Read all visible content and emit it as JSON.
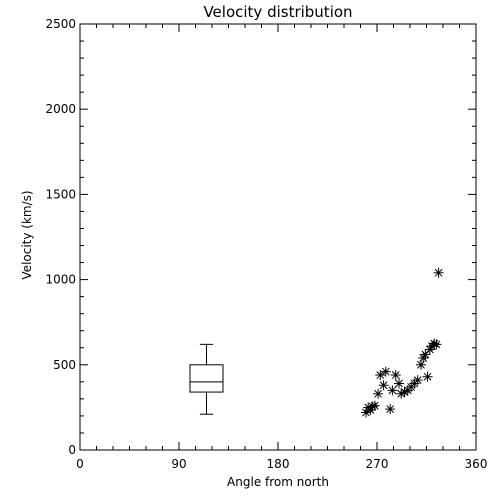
{
  "chart_data": {
    "type": "scatter",
    "title": "Velocity distribution",
    "xlabel": "Angle from north",
    "ylabel": "Velocity (km/s)",
    "xlim": [
      0,
      360
    ],
    "ylim": [
      0,
      2500
    ],
    "x_ticks": [
      0,
      90,
      180,
      270,
      360
    ],
    "y_ticks": [
      0,
      500,
      1000,
      1500,
      2000,
      2500
    ],
    "x_tick_labels": [
      "0",
      "90",
      "180",
      "270",
      "360"
    ],
    "y_tick_labels": [
      "0",
      "500",
      "1000",
      "1500",
      "2000",
      "2500"
    ],
    "grid": false,
    "marker": "asterisk",
    "points": [
      {
        "x": 260,
        "y": 220
      },
      {
        "x": 262,
        "y": 250
      },
      {
        "x": 264,
        "y": 235
      },
      {
        "x": 266,
        "y": 255
      },
      {
        "x": 268,
        "y": 260
      },
      {
        "x": 271,
        "y": 330
      },
      {
        "x": 273,
        "y": 440
      },
      {
        "x": 276,
        "y": 380
      },
      {
        "x": 278,
        "y": 460
      },
      {
        "x": 282,
        "y": 240
      },
      {
        "x": 284,
        "y": 350
      },
      {
        "x": 287,
        "y": 440
      },
      {
        "x": 290,
        "y": 390
      },
      {
        "x": 292,
        "y": 330
      },
      {
        "x": 295,
        "y": 340
      },
      {
        "x": 298,
        "y": 350
      },
      {
        "x": 301,
        "y": 370
      },
      {
        "x": 304,
        "y": 390
      },
      {
        "x": 307,
        "y": 410
      },
      {
        "x": 310,
        "y": 500
      },
      {
        "x": 312,
        "y": 540
      },
      {
        "x": 314,
        "y": 560
      },
      {
        "x": 316,
        "y": 430
      },
      {
        "x": 318,
        "y": 590
      },
      {
        "x": 320,
        "y": 610
      },
      {
        "x": 322,
        "y": 625
      },
      {
        "x": 324,
        "y": 620
      },
      {
        "x": 326,
        "y": 1040
      }
    ],
    "boxplot": {
      "x_center": 115,
      "x_halfwidth": 15,
      "min": 210,
      "q1": 340,
      "median": 400,
      "q3": 500,
      "max": 620
    }
  }
}
